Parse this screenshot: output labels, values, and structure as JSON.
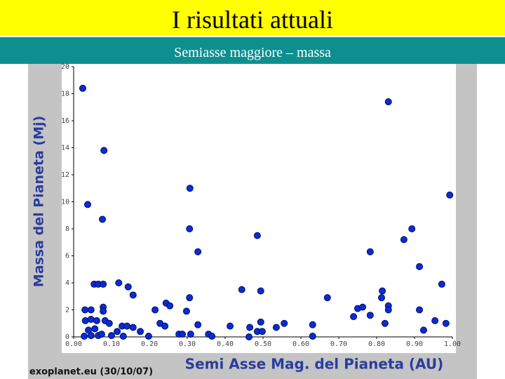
{
  "header": {
    "title": "I risultati attuali",
    "subtitle": "Semiasse maggiore – massa"
  },
  "chart_data": {
    "type": "scatter",
    "y_label": "Massa del Pianeta (Mj)",
    "x_label": "Semi Asse Mag. del Pianeta (AU)",
    "source": "exoplanet.eu (30/10/07)",
    "color": "#0a2bd6",
    "xlim": [
      0,
      1
    ],
    "ylim": [
      0,
      20
    ],
    "xticks": [
      {
        "value": 0,
        "label": "0.00"
      },
      {
        "value": 0.1,
        "label": "0.10"
      },
      {
        "value": 0.2,
        "label": "0.20"
      },
      {
        "value": 0.3,
        "label": "0.30"
      },
      {
        "value": 0.4,
        "label": "0.40"
      },
      {
        "value": 0.5,
        "label": "0.50"
      },
      {
        "value": 0.6,
        "label": "0.60"
      },
      {
        "value": 0.7,
        "label": "0.70"
      },
      {
        "value": 0.8,
        "label": "0.80"
      },
      {
        "value": 0.9,
        "label": "0.90"
      },
      {
        "value": 1,
        "label": "1.00"
      }
    ],
    "yticks": [
      0,
      2,
      4,
      6,
      8,
      10,
      12,
      14,
      16,
      18,
      20
    ],
    "x": [
      0.024,
      0.831,
      0.08,
      0.307,
      0.993,
      0.037,
      0.076,
      0.306,
      0.893,
      0.485,
      0.872,
      0.328,
      0.783,
      0.913,
      0.054,
      0.065,
      0.078,
      0.119,
      0.144,
      0.157,
      0.444,
      0.494,
      0.815,
      0.972,
      0.813,
      0.67,
      0.306,
      0.244,
      0.254,
      0.03,
      0.046,
      0.078,
      0.078,
      0.215,
      0.298,
      0.75,
      0.763,
      0.831,
      0.831,
      0.913,
      0.783,
      0.739,
      0.031,
      0.046,
      0.061,
      0.083,
      0.094,
      0.228,
      0.494,
      0.556,
      0.822,
      0.954,
      0.983,
      0.128,
      0.141,
      0.157,
      0.241,
      0.328,
      0.413,
      0.465,
      0.535,
      0.631,
      0.039,
      0.056,
      0.115,
      0.176,
      0.485,
      0.498,
      0.924,
      0.028,
      0.046,
      0.065,
      0.1,
      0.131,
      0.198,
      0.278,
      0.309,
      0.356,
      0.365,
      0.463,
      0.631,
      0.287,
      0.074
    ],
    "values": [
      18.4,
      17.4,
      13.8,
      11.0,
      10.5,
      9.8,
      8.7,
      8.0,
      8.0,
      7.5,
      7.2,
      6.3,
      6.3,
      5.2,
      3.9,
      3.9,
      3.9,
      4.0,
      3.7,
      3.1,
      3.5,
      3.4,
      3.4,
      3.9,
      2.9,
      2.9,
      2.9,
      2.5,
      2.3,
      2.0,
      2.0,
      2.2,
      1.9,
      2.0,
      1.9,
      2.1,
      2.2,
      2.3,
      2.0,
      2.0,
      1.6,
      1.5,
      1.2,
      1.3,
      1.2,
      1.2,
      1.0,
      1.0,
      1.1,
      1.0,
      1.0,
      1.2,
      1.0,
      0.8,
      0.8,
      0.7,
      0.8,
      0.9,
      0.8,
      0.7,
      0.7,
      0.9,
      0.5,
      0.6,
      0.4,
      0.4,
      0.4,
      0.4,
      0.5,
      0.05,
      0.1,
      0.1,
      0.1,
      0.05,
      0.05,
      0.2,
      0.2,
      0.2,
      0.05,
      0,
      0.05,
      0.2,
      0.2
    ]
  }
}
